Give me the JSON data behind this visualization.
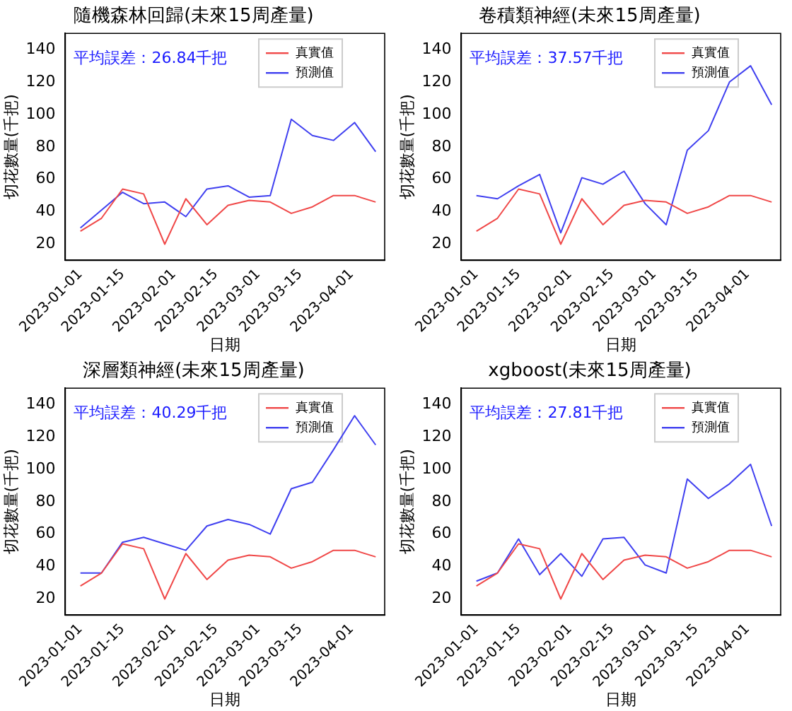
{
  "chart_data": [
    {
      "type": "line",
      "title": "隨機森林回歸(未來15周產量)",
      "xlabel": "日期",
      "ylabel": "切花數量(千把)",
      "annotations": [
        "平均誤差：26.84千把"
      ],
      "x": [
        "2023-01-01",
        "2023-01-08",
        "2023-01-15",
        "2023-01-22",
        "2023-01-29",
        "2023-02-05",
        "2023-02-12",
        "2023-02-19",
        "2023-02-26",
        "2023-03-05",
        "2023-03-12",
        "2023-03-19",
        "2023-03-26",
        "2023-04-02",
        "2023-04-09"
      ],
      "series": [
        {
          "name": "真實值",
          "color": "#f04848",
          "values": [
            28,
            36,
            54,
            51,
            20,
            48,
            32,
            44,
            47,
            46,
            39,
            43,
            50,
            50,
            46
          ]
        },
        {
          "name": "預測值",
          "color": "#4040f0",
          "values": [
            30,
            41,
            52,
            45,
            46,
            37,
            54,
            56,
            49,
            50,
            97,
            87,
            84,
            95,
            77
          ]
        }
      ],
      "xlim": [
        "2022-12-27",
        "2023-04-12"
      ],
      "xticks": [
        "2023-01-01",
        "2023-01-15",
        "2023-02-01",
        "2023-02-15",
        "2023-03-01",
        "2023-03-15",
        "2023-04-01"
      ],
      "ylim": [
        10,
        150
      ],
      "yticks": [
        20,
        40,
        60,
        80,
        100,
        120,
        140
      ],
      "legend": "top right",
      "marker": "none",
      "line_style": "solid"
    },
    {
      "type": "line",
      "title": "卷積類神經(未來15周產量)",
      "xlabel": "日期",
      "ylabel": "切花數量(千把)",
      "annotations": [
        "平均誤差：37.57千把"
      ],
      "x": [
        "2023-01-01",
        "2023-01-08",
        "2023-01-15",
        "2023-01-22",
        "2023-01-29",
        "2023-02-05",
        "2023-02-12",
        "2023-02-19",
        "2023-02-26",
        "2023-03-05",
        "2023-03-12",
        "2023-03-19",
        "2023-03-26",
        "2023-04-02",
        "2023-04-09"
      ],
      "series": [
        {
          "name": "真實值",
          "color": "#f04848",
          "values": [
            28,
            36,
            54,
            51,
            20,
            48,
            32,
            44,
            47,
            46,
            39,
            43,
            50,
            50,
            46
          ]
        },
        {
          "name": "預測值",
          "color": "#4040f0",
          "values": [
            50,
            48,
            56,
            63,
            27,
            61,
            57,
            65,
            45,
            32,
            78,
            90,
            120,
            130,
            106
          ]
        }
      ],
      "xlim": [
        "2022-12-27",
        "2023-04-12"
      ],
      "xticks": [
        "2023-01-01",
        "2023-01-15",
        "2023-02-01",
        "2023-02-15",
        "2023-03-01",
        "2023-03-15",
        "2023-04-01"
      ],
      "ylim": [
        10,
        150
      ],
      "yticks": [
        20,
        40,
        60,
        80,
        100,
        120,
        140
      ],
      "legend": "top right",
      "marker": "none",
      "line_style": "solid"
    },
    {
      "type": "line",
      "title": "深層類神經(未來15周產量)",
      "xlabel": "日期",
      "ylabel": "切花數量(千把)",
      "annotations": [
        "平均誤差：40.29千把"
      ],
      "x": [
        "2023-01-01",
        "2023-01-08",
        "2023-01-15",
        "2023-01-22",
        "2023-01-29",
        "2023-02-05",
        "2023-02-12",
        "2023-02-19",
        "2023-02-26",
        "2023-03-05",
        "2023-03-12",
        "2023-03-19",
        "2023-03-26",
        "2023-04-02",
        "2023-04-09"
      ],
      "series": [
        {
          "name": "真實值",
          "color": "#f04848",
          "values": [
            28,
            36,
            54,
            51,
            20,
            48,
            32,
            44,
            47,
            46,
            39,
            43,
            50,
            50,
            46
          ]
        },
        {
          "name": "預測值",
          "color": "#4040f0",
          "values": [
            36,
            36,
            55,
            58,
            54,
            50,
            65,
            69,
            66,
            60,
            88,
            92,
            112,
            133,
            115
          ]
        }
      ],
      "xlim": [
        "2022-12-27",
        "2023-04-12"
      ],
      "xticks": [
        "2023-01-01",
        "2023-01-15",
        "2023-02-01",
        "2023-02-15",
        "2023-03-01",
        "2023-03-15",
        "2023-04-01"
      ],
      "ylim": [
        10,
        150
      ],
      "yticks": [
        20,
        40,
        60,
        80,
        100,
        120,
        140
      ],
      "legend": "top right",
      "marker": "none",
      "line_style": "solid"
    },
    {
      "type": "line",
      "title": "xgboost(未來15周產量)",
      "xlabel": "日期",
      "ylabel": "切花數量(千把)",
      "annotations": [
        "平均誤差：27.81千把"
      ],
      "x": [
        "2023-01-01",
        "2023-01-08",
        "2023-01-15",
        "2023-01-22",
        "2023-01-29",
        "2023-02-05",
        "2023-02-12",
        "2023-02-19",
        "2023-02-26",
        "2023-03-05",
        "2023-03-12",
        "2023-03-19",
        "2023-03-26",
        "2023-04-02",
        "2023-04-09"
      ],
      "series": [
        {
          "name": "真實值",
          "color": "#f04848",
          "values": [
            28,
            36,
            54,
            51,
            20,
            48,
            32,
            44,
            47,
            46,
            39,
            43,
            50,
            50,
            46
          ]
        },
        {
          "name": "預測值",
          "color": "#4040f0",
          "values": [
            31,
            36,
            57,
            35,
            48,
            34,
            57,
            58,
            41,
            36,
            94,
            82,
            91,
            103,
            65
          ]
        }
      ],
      "xlim": [
        "2022-12-27",
        "2023-04-12"
      ],
      "xticks": [
        "2023-01-01",
        "2023-01-15",
        "2023-02-01",
        "2023-02-15",
        "2023-03-01",
        "2023-03-15",
        "2023-04-01"
      ],
      "ylim": [
        10,
        150
      ],
      "yticks": [
        20,
        40,
        60,
        80,
        100,
        120,
        140
      ],
      "legend": "top right",
      "marker": "none",
      "line_style": "solid"
    }
  ]
}
